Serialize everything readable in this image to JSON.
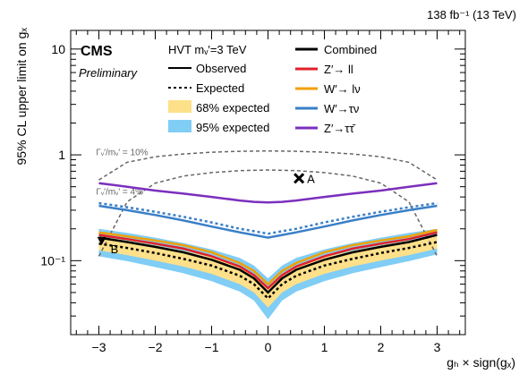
{
  "chart_data": {
    "type": "line",
    "lumi_label": "138 fb⁻¹ (13 TeV)",
    "experiment": "CMS",
    "status": "Preliminary",
    "model": "HVT mᵥ′=3 TeV",
    "xlabel": "gₕ × sign(gₓ)",
    "ylabel": "95% CL upper limit on gₓ",
    "xlim": [
      -3.5,
      3.5
    ],
    "ylim": [
      0.02,
      15
    ],
    "yscale": "log",
    "x_ticks": [
      -3,
      -2,
      -1,
      0,
      1,
      2,
      3
    ],
    "x_tick_labels": [
      "−3",
      "−2",
      "−1",
      "0",
      "1",
      "2",
      "3"
    ],
    "y_ticks": [
      0.1,
      1,
      10
    ],
    "y_tick_labels": [
      "10⁻¹",
      "1",
      "10"
    ],
    "legend": {
      "observed": "Observed",
      "expected": "Expected",
      "band68": "68% expected",
      "band95": "95% expected",
      "combined": "Combined",
      "zll": "Z′→ ll",
      "wlnu": "W′→ lν",
      "wtaunu": "W′→τν",
      "ztautau": "Z′→ττ̄"
    },
    "width_curves": [
      {
        "label": "Γᵥ′/mᵥ′ = 10%",
        "x": [
          -3.0,
          -2.5,
          -2.0,
          -1.5,
          -1.0,
          -0.5,
          0.0,
          0.5,
          1.0,
          1.5,
          2.0,
          2.5,
          3.0
        ],
        "y": [
          0.58,
          0.85,
          0.96,
          1.02,
          1.06,
          1.08,
          1.09,
          1.08,
          1.06,
          1.02,
          0.96,
          0.85,
          0.58
        ]
      },
      {
        "label": "Γᵥ′/mᵥ′ = 4%",
        "x": [
          -3.0,
          -2.5,
          -2.0,
          -1.5,
          -1.0,
          -0.5,
          0.0,
          0.5,
          1.0,
          1.5,
          2.0,
          2.5,
          3.0
        ],
        "y": [
          0.11,
          0.36,
          0.54,
          0.63,
          0.68,
          0.71,
          0.72,
          0.71,
          0.68,
          0.63,
          0.54,
          0.36,
          0.11
        ]
      }
    ],
    "x": [
      -3.0,
      -2.5,
      -2.0,
      -1.5,
      -1.0,
      -0.5,
      -0.25,
      0.0,
      0.25,
      0.5,
      1.0,
      1.5,
      2.0,
      2.5,
      3.0
    ],
    "series": [
      {
        "name": "Z′→ττ̄",
        "observed": [
          0.54,
          0.5,
          0.46,
          0.43,
          0.4,
          0.37,
          0.36,
          0.355,
          0.36,
          0.37,
          0.4,
          0.43,
          0.46,
          0.5,
          0.54
        ],
        "color": "#7b2fbe"
      },
      {
        "name": "W′→τν",
        "observed": [
          0.33,
          0.3,
          0.27,
          0.24,
          0.21,
          0.185,
          0.175,
          0.165,
          0.175,
          0.185,
          0.21,
          0.24,
          0.27,
          0.3,
          0.33
        ],
        "expected": [
          0.35,
          0.32,
          0.29,
          0.26,
          0.23,
          0.2,
          0.19,
          0.18,
          0.19,
          0.2,
          0.23,
          0.26,
          0.29,
          0.32,
          0.35
        ],
        "color": "#3a7fc8"
      },
      {
        "name": "W′→ lν",
        "observed": [
          0.185,
          0.17,
          0.155,
          0.14,
          0.12,
          0.095,
          0.08,
          0.06,
          0.08,
          0.095,
          0.12,
          0.14,
          0.155,
          0.17,
          0.195
        ],
        "color": "#f0a000"
      },
      {
        "name": "Z′→ ll",
        "observed": [
          0.175,
          0.16,
          0.145,
          0.13,
          0.11,
          0.088,
          0.073,
          0.055,
          0.073,
          0.088,
          0.11,
          0.13,
          0.145,
          0.16,
          0.185
        ],
        "color": "#e0202a"
      },
      {
        "name": "Combined",
        "observed": [
          0.165,
          0.15,
          0.135,
          0.12,
          0.102,
          0.082,
          0.068,
          0.05,
          0.068,
          0.082,
          0.102,
          0.12,
          0.135,
          0.15,
          0.175
        ],
        "expected": [
          0.145,
          0.132,
          0.118,
          0.104,
          0.09,
          0.072,
          0.06,
          0.044,
          0.06,
          0.072,
          0.09,
          0.104,
          0.118,
          0.132,
          0.15
        ],
        "band68_lo": [
          0.125,
          0.113,
          0.1,
          0.088,
          0.075,
          0.06,
          0.05,
          0.036,
          0.05,
          0.06,
          0.075,
          0.088,
          0.1,
          0.113,
          0.13
        ],
        "band68_hi": [
          0.17,
          0.155,
          0.14,
          0.124,
          0.108,
          0.088,
          0.074,
          0.055,
          0.074,
          0.088,
          0.108,
          0.124,
          0.14,
          0.155,
          0.175
        ],
        "band95_lo": [
          0.11,
          0.099,
          0.087,
          0.076,
          0.064,
          0.051,
          0.042,
          0.028,
          0.042,
          0.051,
          0.064,
          0.076,
          0.087,
          0.099,
          0.115
        ],
        "band95_hi": [
          0.2,
          0.183,
          0.165,
          0.147,
          0.128,
          0.106,
          0.09,
          0.068,
          0.09,
          0.106,
          0.128,
          0.147,
          0.165,
          0.183,
          0.2
        ],
        "color": "#000000"
      }
    ],
    "annotations": [
      {
        "label": "A",
        "x": 0.55,
        "y": 0.6
      },
      {
        "label": "B",
        "x": -2.95,
        "y": 0.155
      }
    ],
    "colors": {
      "band68": "#fde08a",
      "band95": "#80cdf5",
      "width_curves": "#666666"
    }
  }
}
